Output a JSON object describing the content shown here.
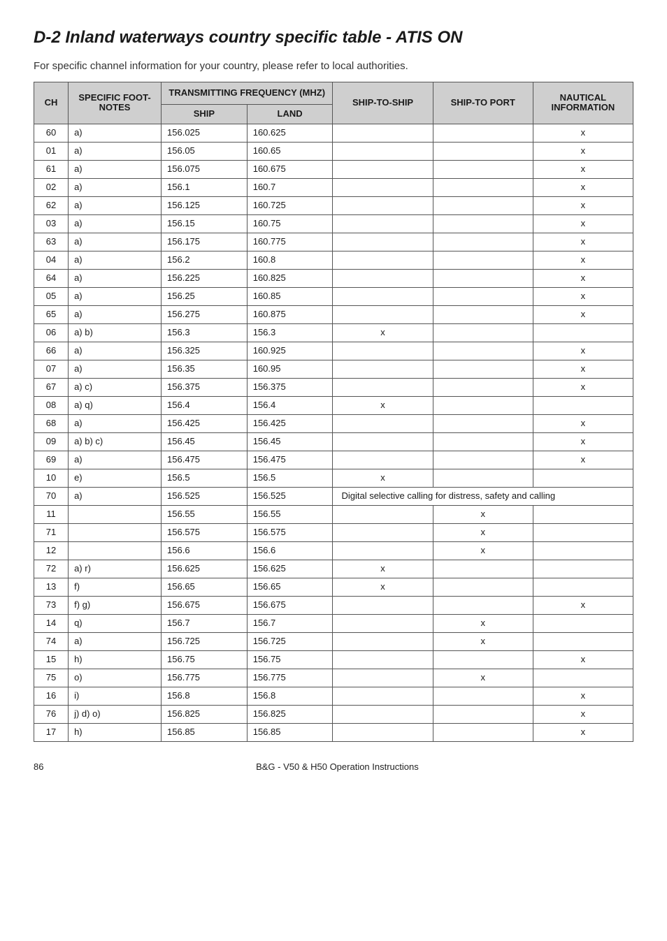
{
  "heading": "D-2 Inland waterways country specific table - ATIS ON",
  "intro": "For specific channel information for your country, please refer to local authorities.",
  "columns": {
    "ch": "CH",
    "notes": "SPECIFIC FOOT-NOTES",
    "trans": "TRANSMITTING FREQUENCY (MHZ)",
    "ship": "SHIP",
    "land": "LAND",
    "sts": "SHIP-TO-SHIP",
    "stp": "SHIP-TO PORT",
    "naut": "NAUTICAL INFORMATION"
  },
  "merged_row_text": "Digital selective calling for distress, safety and calling",
  "rows": [
    {
      "ch": "60",
      "notes": "a)",
      "ship": "156.025",
      "land": "160.625",
      "sts": "",
      "stp": "",
      "naut": "x"
    },
    {
      "ch": "01",
      "notes": "a)",
      "ship": "156.05",
      "land": "160.65",
      "sts": "",
      "stp": "",
      "naut": "x"
    },
    {
      "ch": "61",
      "notes": "a)",
      "ship": "156.075",
      "land": "160.675",
      "sts": "",
      "stp": "",
      "naut": "x"
    },
    {
      "ch": "02",
      "notes": "a)",
      "ship": "156.1",
      "land": "160.7",
      "sts": "",
      "stp": "",
      "naut": "x"
    },
    {
      "ch": "62",
      "notes": "a)",
      "ship": "156.125",
      "land": "160.725",
      "sts": "",
      "stp": "",
      "naut": "x"
    },
    {
      "ch": "03",
      "notes": "a)",
      "ship": "156.15",
      "land": "160.75",
      "sts": "",
      "stp": "",
      "naut": "x"
    },
    {
      "ch": "63",
      "notes": "a)",
      "ship": "156.175",
      "land": "160.775",
      "sts": "",
      "stp": "",
      "naut": "x"
    },
    {
      "ch": "04",
      "notes": "a)",
      "ship": "156.2",
      "land": "160.8",
      "sts": "",
      "stp": "",
      "naut": "x"
    },
    {
      "ch": "64",
      "notes": "a)",
      "ship": "156.225",
      "land": "160.825",
      "sts": "",
      "stp": "",
      "naut": "x"
    },
    {
      "ch": "05",
      "notes": "a)",
      "ship": "156.25",
      "land": "160.85",
      "sts": "",
      "stp": "",
      "naut": "x"
    },
    {
      "ch": "65",
      "notes": "a)",
      "ship": "156.275",
      "land": "160.875",
      "sts": "",
      "stp": "",
      "naut": "x"
    },
    {
      "ch": "06",
      "notes": "a) b)",
      "ship": "156.3",
      "land": "156.3",
      "sts": "x",
      "stp": "",
      "naut": ""
    },
    {
      "ch": "66",
      "notes": "a)",
      "ship": "156.325",
      "land": "160.925",
      "sts": "",
      "stp": "",
      "naut": "x"
    },
    {
      "ch": "07",
      "notes": "a)",
      "ship": "156.35",
      "land": "160.95",
      "sts": "",
      "stp": "",
      "naut": "x"
    },
    {
      "ch": "67",
      "notes": "a) c)",
      "ship": "156.375",
      "land": "156.375",
      "sts": "",
      "stp": "",
      "naut": "x"
    },
    {
      "ch": "08",
      "notes": "a) q)",
      "ship": "156.4",
      "land": "156.4",
      "sts": "x",
      "stp": "",
      "naut": ""
    },
    {
      "ch": "68",
      "notes": "a)",
      "ship": "156.425",
      "land": "156.425",
      "sts": "",
      "stp": "",
      "naut": "x"
    },
    {
      "ch": "09",
      "notes": "a) b) c)",
      "ship": "156.45",
      "land": "156.45",
      "sts": "",
      "stp": "",
      "naut": "x"
    },
    {
      "ch": "69",
      "notes": "a)",
      "ship": "156.475",
      "land": "156.475",
      "sts": "",
      "stp": "",
      "naut": "x"
    },
    {
      "ch": "10",
      "notes": "e)",
      "ship": "156.5",
      "land": "156.5",
      "sts": "x",
      "stp": "",
      "naut": ""
    },
    {
      "ch": "70",
      "notes": "a)",
      "ship": "156.525",
      "land": "156.525",
      "merged": true
    },
    {
      "ch": "11",
      "notes": "",
      "ship": "156.55",
      "land": "156.55",
      "sts": "",
      "stp": "x",
      "naut": ""
    },
    {
      "ch": "71",
      "notes": "",
      "ship": "156.575",
      "land": "156.575",
      "sts": "",
      "stp": "x",
      "naut": ""
    },
    {
      "ch": "12",
      "notes": "",
      "ship": "156.6",
      "land": "156.6",
      "sts": "",
      "stp": "x",
      "naut": ""
    },
    {
      "ch": "72",
      "notes": "a) r)",
      "ship": "156.625",
      "land": "156.625",
      "sts": "x",
      "stp": "",
      "naut": ""
    },
    {
      "ch": "13",
      "notes": "f)",
      "ship": "156.65",
      "land": "156.65",
      "sts": "x",
      "stp": "",
      "naut": ""
    },
    {
      "ch": "73",
      "notes": "f) g)",
      "ship": "156.675",
      "land": "156.675",
      "sts": "",
      "stp": "",
      "naut": "x"
    },
    {
      "ch": "14",
      "notes": "q)",
      "ship": "156.7",
      "land": "156.7",
      "sts": "",
      "stp": "x",
      "naut": ""
    },
    {
      "ch": "74",
      "notes": "a)",
      "ship": "156.725",
      "land": "156.725",
      "sts": "",
      "stp": "x",
      "naut": ""
    },
    {
      "ch": "15",
      "notes": "h)",
      "ship": "156.75",
      "land": "156.75",
      "sts": "",
      "stp": "",
      "naut": "x"
    },
    {
      "ch": "75",
      "notes": "o)",
      "ship": "156.775",
      "land": "156.775",
      "sts": "",
      "stp": "x",
      "naut": ""
    },
    {
      "ch": "16",
      "notes": "i)",
      "ship": "156.8",
      "land": "156.8",
      "sts": "",
      "stp": "",
      "naut": "x"
    },
    {
      "ch": "76",
      "notes": "j) d) o)",
      "ship": "156.825",
      "land": "156.825",
      "sts": "",
      "stp": "",
      "naut": "x"
    },
    {
      "ch": "17",
      "notes": "h)",
      "ship": "156.85",
      "land": "156.85",
      "sts": "",
      "stp": "",
      "naut": "x"
    }
  ],
  "footer": {
    "page": "86",
    "doc": "B&G - V50 & H50 Operation Instructions"
  }
}
